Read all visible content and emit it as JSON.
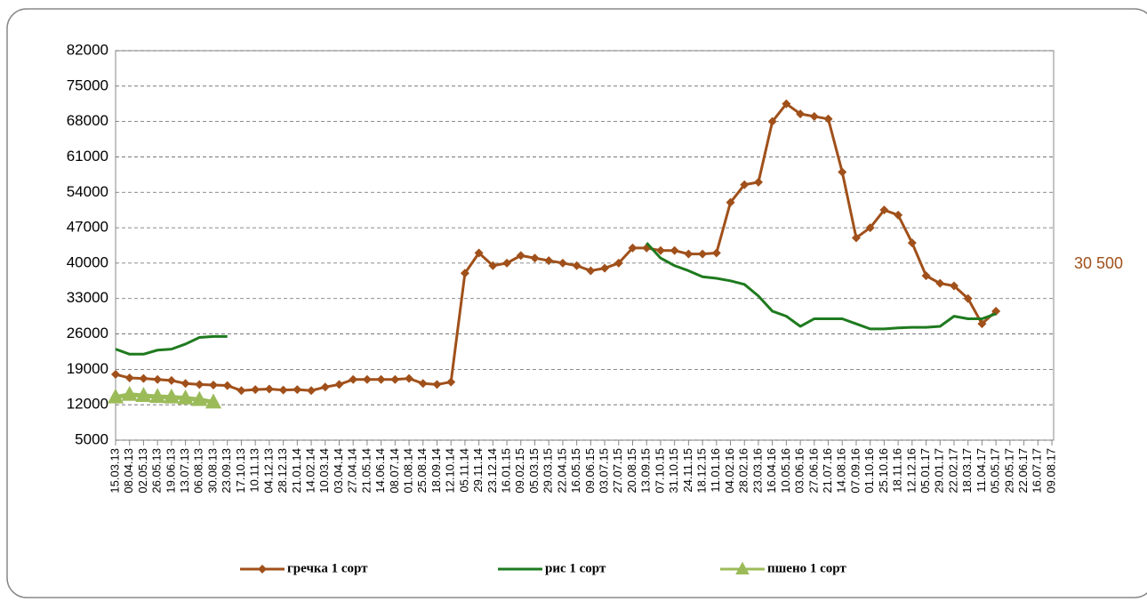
{
  "chart_data": {
    "type": "line",
    "categories": [
      "15.03.13",
      "08.04.13",
      "02.05.13",
      "26.05.13",
      "19.06.13",
      "13.07.13",
      "06.08.13",
      "30.08.13",
      "23.09.13",
      "17.10.13",
      "10.11.13",
      "04.12.13",
      "28.12.13",
      "21.01.14",
      "14.02.14",
      "10.03.14",
      "03.04.14",
      "27.04.14",
      "21.05.14",
      "14.06.14",
      "08.07.14",
      "01.08.14",
      "25.08.14",
      "18.09.14",
      "12.10.14",
      "05.11.14",
      "29.11.14",
      "23.12.14",
      "16.01.15",
      "09.02.15",
      "05.03.15",
      "29.03.15",
      "22.04.15",
      "16.05.15",
      "09.06.15",
      "03.07.15",
      "27.07.15",
      "20.08.15",
      "13.09.15",
      "07.10.15",
      "31.10.15",
      "24.11.15",
      "18.12.15",
      "11.01.16",
      "04.02.16",
      "28.02.16",
      "23.03.16",
      "16.04.16",
      "10.05.16",
      "03.06.16",
      "27.06.16",
      "21.07.16",
      "14.08.16",
      "07.09.16",
      "01.10.16",
      "25.10.16",
      "18.11.16",
      "12.12.16",
      "05.01.17",
      "29.01.17",
      "22.02.17",
      "18.03.17",
      "11.04.17",
      "05.05.17",
      "29.05.17",
      "22.06.17",
      "16.07.17",
      "09.08.17"
    ],
    "series": [
      {
        "name": "гречка 1 сорт",
        "color": "#a0501a",
        "marker": "diamond",
        "values": [
          18000,
          17300,
          17200,
          17000,
          16800,
          16200,
          16000,
          15900,
          15800,
          14800,
          15000,
          15100,
          14900,
          15000,
          14800,
          15500,
          16000,
          17000,
          17000,
          17000,
          17000,
          17200,
          16200,
          16000,
          16500,
          38000,
          42000,
          39500,
          40000,
          41500,
          41000,
          40500,
          40000,
          39500,
          38500,
          39000,
          40000,
          43000,
          43000,
          42500,
          42500,
          41800,
          41800,
          42000,
          52000,
          55500,
          56000,
          68000,
          71500,
          69500,
          69000,
          68500,
          58000,
          45000,
          47000,
          50500,
          49500,
          44000,
          37500,
          36000,
          35500,
          33000,
          28000,
          30500,
          null,
          null,
          null,
          null
        ]
      },
      {
        "name": "рис 1 сорт",
        "color": "#1e7a1e",
        "marker": "none",
        "values": [
          23000,
          22000,
          22000,
          22800,
          23000,
          24000,
          25300,
          25500,
          25500,
          null,
          null,
          null,
          null,
          null,
          null,
          null,
          null,
          null,
          null,
          null,
          null,
          null,
          null,
          null,
          null,
          null,
          null,
          null,
          null,
          null,
          null,
          null,
          null,
          null,
          null,
          null,
          null,
          null,
          44000,
          41000,
          39500,
          38500,
          37300,
          37000,
          36500,
          35800,
          33500,
          30500,
          29500,
          27500,
          29000,
          29000,
          29000,
          28000,
          27000,
          27000,
          27200,
          27300,
          27300,
          27500,
          29500,
          29000,
          29000,
          30000,
          null,
          null,
          null,
          null
        ]
      },
      {
        "name": "пшено 1 сорт",
        "color": "#9bbb59",
        "marker": "triangle",
        "values": [
          13500,
          14000,
          13800,
          13600,
          13500,
          13300,
          13000,
          12500,
          null,
          null,
          null,
          null,
          null,
          null,
          null,
          null,
          null,
          null,
          null,
          null,
          null,
          null,
          null,
          null,
          null,
          null,
          null,
          null,
          null,
          null,
          null,
          null,
          null,
          null,
          null,
          null,
          null,
          null,
          null,
          null,
          null,
          null,
          null,
          null,
          null,
          null,
          null,
          null,
          null,
          null,
          null,
          null,
          null,
          null,
          null,
          null,
          null,
          null,
          null,
          null,
          null,
          null,
          null,
          null,
          null,
          null,
          null,
          null
        ]
      }
    ],
    "ylim": [
      5000,
      82000
    ],
    "yticks": [
      5000,
      12000,
      19000,
      26000,
      33000,
      40000,
      47000,
      54000,
      61000,
      68000,
      75000,
      82000
    ],
    "grid": true,
    "legend": "bottom",
    "annotation": "30 500",
    "annotation_color": "#a0501a"
  }
}
